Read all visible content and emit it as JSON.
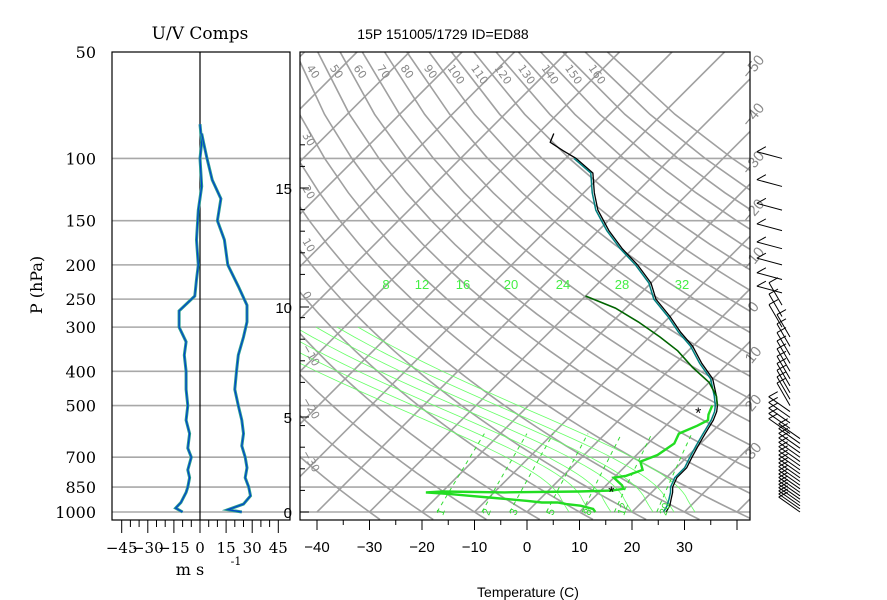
{
  "header": {
    "uv_title": "U/V Comps",
    "skewt_title": "15P 151005/1729 ID=ED88"
  },
  "chart_data": [
    {
      "type": "line",
      "name": "uv-components-panel",
      "title": "U/V Comps",
      "xlabel": "m s",
      "xlabel_sup": "-1",
      "ylabel": "P (hPa)",
      "xlim": [
        -50,
        50
      ],
      "ylim": [
        1000,
        50
      ],
      "y_scale": "log",
      "x_ticks": [
        -45,
        -30,
        -15,
        0,
        15,
        30,
        45
      ],
      "x_tick_labels": [
        "−45",
        "−30",
        "−15",
        "0",
        "15",
        "30",
        "45"
      ],
      "pressure_ticks": [
        50,
        100,
        150,
        200,
        250,
        300,
        400,
        500,
        700,
        850,
        1000
      ],
      "series": [
        {
          "color": "#0044cc",
          "points": [
            [
              -10,
              1000
            ],
            [
              -14,
              975
            ],
            [
              -11,
              940
            ],
            [
              -8,
              880
            ],
            [
              -7,
              850
            ],
            [
              -6,
              800
            ],
            [
              -7,
              760
            ],
            [
              -5,
              700
            ],
            [
              -7,
              660
            ],
            [
              -6,
              600
            ],
            [
              -8,
              550
            ],
            [
              -7,
              500
            ],
            [
              -8,
              450
            ],
            [
              -8,
              400
            ],
            [
              -9,
              360
            ],
            [
              -8,
              330
            ],
            [
              -12,
              300
            ],
            [
              -12,
              270
            ],
            [
              -3,
              245
            ],
            [
              -2,
              220
            ],
            [
              -1,
              200
            ],
            [
              -2,
              170
            ],
            [
              -1,
              140
            ],
            [
              1,
              120
            ],
            [
              0,
              100
            ],
            [
              1,
              90
            ],
            [
              0,
              80
            ]
          ]
        },
        {
          "color": "#0044cc",
          "points": [
            [
              24,
              1000
            ],
            [
              16,
              985
            ],
            [
              25,
              950
            ],
            [
              29,
              900
            ],
            [
              28,
              850
            ],
            [
              26,
              800
            ],
            [
              27,
              750
            ],
            [
              26,
              700
            ],
            [
              24,
              650
            ],
            [
              25,
              600
            ],
            [
              24,
              550
            ],
            [
              22,
              500
            ],
            [
              20,
              450
            ],
            [
              21,
              400
            ],
            [
              22,
              360
            ],
            [
              25,
              320
            ],
            [
              27,
              290
            ],
            [
              27,
              260
            ],
            [
              22,
              230
            ],
            [
              16,
              200
            ],
            [
              14,
              170
            ],
            [
              10,
              150
            ],
            [
              12,
              130
            ],
            [
              7,
              115
            ],
            [
              4,
              100
            ],
            [
              2,
              90
            ],
            [
              1,
              85
            ]
          ]
        }
      ]
    },
    {
      "type": "line",
      "name": "skew-t-diagram",
      "title": "15P 151005/1729 ID=ED88",
      "xlabel": "Temperature (C)",
      "xlim": [
        -40,
        40
      ],
      "x_ticks": [
        -40,
        -30,
        -20,
        -10,
        0,
        10,
        20,
        30
      ],
      "x_tick_labels": [
        "−40",
        "−30",
        "−20",
        "−10",
        "0",
        "10",
        "20",
        "30"
      ],
      "height_ticks_km": [
        0,
        5,
        10,
        15
      ],
      "height_tick_labels": [
        "0",
        "5",
        "10",
        "15"
      ],
      "isotherm_labels": [
        "−50",
        "−40",
        "−30",
        "−20",
        "−10",
        "0",
        "10",
        "20",
        "30"
      ],
      "dry_adiabat_labels": [
        "40",
        "50",
        "60",
        "70",
        "80",
        "90",
        "100",
        "110",
        "120",
        "130",
        "140",
        "150",
        "160"
      ],
      "left_edge_adiabat_labels": [
        "30",
        "20",
        "10",
        "0",
        "−10",
        "−20",
        "−30"
      ],
      "moist_adiabat_labels": [
        "8",
        "12",
        "16",
        "20",
        "24",
        "28",
        "32"
      ],
      "mixing_ratio_labels": [
        "1",
        "2",
        "3",
        "5",
        "8",
        "12",
        "20"
      ],
      "series": [
        {
          "label": "environment temperature",
          "color": "#000000",
          "points": [
            [
              26.5,
              1000
            ],
            [
              26,
              960
            ],
            [
              25,
              920
            ],
            [
              24,
              880
            ],
            [
              23,
              850
            ],
            [
              22,
              800
            ],
            [
              22,
              750
            ],
            [
              21,
              700
            ],
            [
              20,
              650
            ],
            [
              19,
              600
            ],
            [
              18,
              550
            ],
            [
              17,
              520
            ],
            [
              16,
              500
            ],
            [
              14,
              470
            ],
            [
              10,
              420
            ],
            [
              5,
              380
            ],
            [
              0,
              340
            ],
            [
              -5,
              310
            ],
            [
              -10,
              280
            ],
            [
              -16,
              250
            ],
            [
              -20,
              225
            ],
            [
              -26,
              200
            ],
            [
              -32,
              180
            ],
            [
              -38,
              160
            ],
            [
              -44,
              140
            ],
            [
              -48,
              125
            ],
            [
              -52,
              110
            ],
            [
              -58,
              100
            ],
            [
              -62,
              95
            ],
            [
              -66,
              90
            ],
            [
              -67,
              85
            ]
          ]
        },
        {
          "label": "environment dewpoint",
          "color": "#008080",
          "points": [
            [
              26,
              1000
            ],
            [
              25.5,
              960
            ],
            [
              24.6,
              920
            ],
            [
              23.6,
              880
            ],
            [
              22.6,
              850
            ],
            [
              21.6,
              800
            ],
            [
              21.6,
              750
            ],
            [
              20.6,
              700
            ],
            [
              19.6,
              650
            ],
            [
              18.6,
              600
            ],
            [
              17.6,
              550
            ],
            [
              16.6,
              520
            ],
            [
              15.6,
              500
            ],
            [
              13.6,
              470
            ],
            [
              9.6,
              420
            ],
            [
              4.6,
              380
            ],
            [
              -0.4,
              340
            ],
            [
              -5.4,
              310
            ],
            [
              -10.4,
              280
            ],
            [
              -16.4,
              250
            ],
            [
              -20.4,
              225
            ],
            [
              -26.4,
              200
            ],
            [
              -32.4,
              180
            ],
            [
              -38.4,
              160
            ],
            [
              -44.4,
              140
            ],
            [
              -48.4,
              125
            ],
            [
              -52.4,
              110
            ],
            [
              -58.4,
              100
            ]
          ]
        },
        {
          "label": "parcel trace",
          "color": "#006400",
          "points": [
            [
              16,
              500
            ],
            [
              14,
              470
            ],
            [
              10,
              430
            ],
            [
              4,
              390
            ],
            [
              -2,
              350
            ],
            [
              -8,
              320
            ],
            [
              -15,
              290
            ],
            [
              -22,
              265
            ],
            [
              -30,
              245
            ]
          ]
        },
        {
          "label": "layer dewpoint",
          "color": "#22dd22",
          "points": [
            [
              13,
              1000
            ],
            [
              12,
              980
            ],
            [
              9,
              960
            ],
            [
              6,
              950
            ],
            [
              4,
              940
            ],
            [
              1,
              940
            ],
            [
              -2,
              930
            ],
            [
              -6,
              920
            ],
            [
              -10,
              910
            ],
            [
              -14,
              900
            ],
            [
              -18,
              890
            ],
            [
              -23,
              880
            ],
            [
              -20,
              875
            ],
            [
              -8,
              880
            ],
            [
              6,
              875
            ],
            [
              12,
              870
            ],
            [
              14,
              860
            ],
            [
              13,
              840
            ],
            [
              10,
              800
            ],
            [
              12,
              790
            ],
            [
              14,
              760
            ],
            [
              12,
              720
            ],
            [
              14,
              690
            ],
            [
              15,
              640
            ],
            [
              14,
              600
            ],
            [
              16,
              570
            ],
            [
              17,
              550
            ],
            [
              16,
              530
            ],
            [
              15,
              500
            ]
          ]
        }
      ]
    },
    {
      "type": "scatter",
      "name": "wind-barbs",
      "note_glyph": "barb",
      "pressures": [
        1000,
        980,
        960,
        940,
        920,
        900,
        880,
        860,
        840,
        820,
        800,
        780,
        760,
        740,
        720,
        700,
        680,
        660,
        640,
        620,
        600,
        580,
        560,
        540,
        520,
        500,
        480,
        460,
        440,
        420,
        400,
        380,
        360,
        340,
        320,
        300,
        280,
        260,
        240,
        220,
        200,
        180,
        160,
        140,
        120,
        100
      ]
    }
  ]
}
